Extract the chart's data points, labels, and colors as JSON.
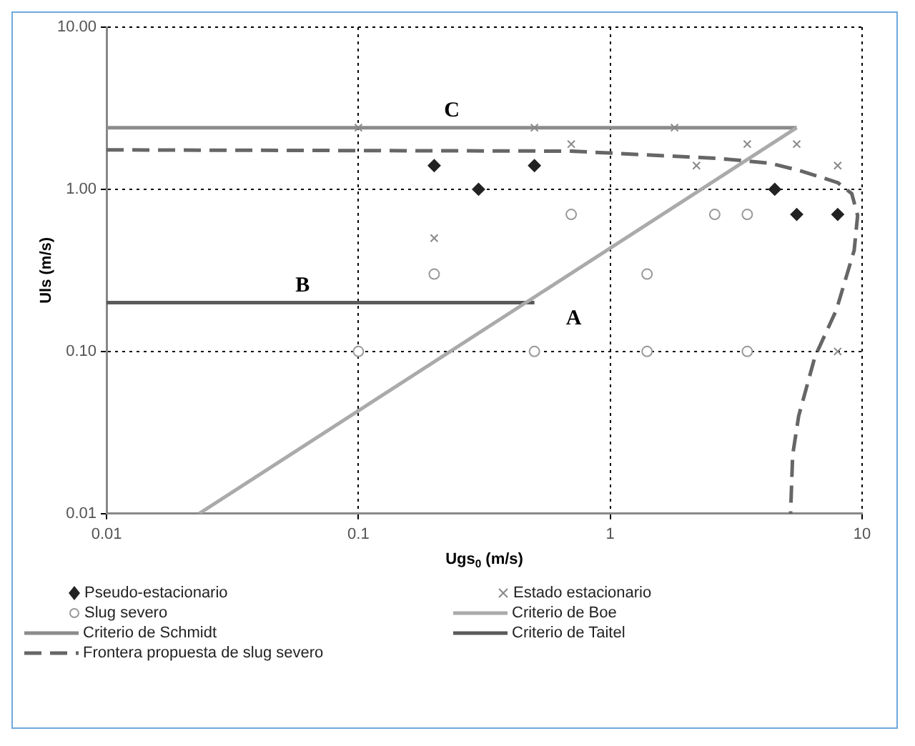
{
  "chart_data": {
    "type": "scatter",
    "xlabel": "Ugs$_{0}$ (m/s)",
    "ylabel": "Uls (m/s)",
    "log": "xy",
    "grid": true,
    "legend": "bottom",
    "xlim": [
      0.01,
      10
    ],
    "xticks": [
      0.01,
      0.1,
      1,
      10
    ],
    "ylim": [
      0.01,
      10
    ],
    "yticks": [
      {
        "value": 0.01,
        "label": "0.01"
      },
      {
        "value": 0.1,
        "label": "0.10"
      },
      {
        "value": 1,
        "label": "1.00"
      },
      {
        "value": 10,
        "label": "10.00"
      }
    ],
    "series": [
      {
        "name": "Pseudo-estacionario",
        "marker": "diamond",
        "color": "#222222",
        "x": [
          0.2,
          0.3,
          0.5,
          4.5,
          5.5,
          8
        ],
        "values": [
          1.4,
          1.0,
          1.4,
          1.0,
          0.7,
          0.7
        ]
      },
      {
        "name": "Estado estacionario",
        "marker": "cross",
        "color": "#888888",
        "x": [
          0.1,
          0.2,
          0.5,
          0.7,
          1.8,
          2.2,
          3.5,
          5.5,
          8,
          8
        ],
        "values": [
          2.4,
          0.5,
          2.4,
          1.9,
          2.4,
          1.4,
          1.9,
          1.9,
          1.4,
          0.1
        ]
      },
      {
        "name": "Slug severo",
        "marker": "circle",
        "color": "#999999",
        "x": [
          0.1,
          0.2,
          0.7,
          1.4,
          2.6,
          3.5,
          0.5,
          1.4,
          3.5
        ],
        "values": [
          0.1,
          0.3,
          0.7,
          0.3,
          0.7,
          0.7,
          0.1,
          0.1,
          0.1
        ]
      },
      {
        "name": "Criterio de Boe",
        "type": "line",
        "marker": "none",
        "line_style": "solid",
        "color": "#aaaaaa",
        "x": [
          0.0233,
          5.5
        ],
        "values": [
          0.01,
          2.4
        ]
      },
      {
        "name": "Criterio de Schmidt",
        "type": "line",
        "marker": "none",
        "line_style": "solid",
        "color": "#8c8c8c",
        "x": [
          0.01,
          5.5
        ],
        "values": [
          2.4,
          2.4
        ]
      },
      {
        "name": "Criterio de Taitel",
        "type": "line",
        "marker": "none",
        "line_style": "solid",
        "color": "#5a5a5a",
        "x": [
          0.01,
          0.5
        ],
        "values": [
          0.2,
          0.2
        ]
      },
      {
        "name": "Frontera propuesta de slug severo",
        "type": "line",
        "marker": "none",
        "line_style": "dashed",
        "color": "#666666",
        "x": [
          0.01,
          0.7,
          2.7,
          4.3,
          5.7,
          8,
          9.1,
          9.6,
          9.3,
          7.9,
          6.5,
          5.6,
          5.3,
          5.2
        ],
        "values": [
          1.75,
          1.72,
          1.55,
          1.45,
          1.3,
          1.1,
          0.94,
          0.69,
          0.42,
          0.18,
          0.093,
          0.04,
          0.023,
          0.01
        ]
      }
    ],
    "annotations": [
      {
        "text": "A",
        "x": 0.5,
        "y": 0.2
      },
      {
        "text": "B",
        "x": 0.06,
        "y": 0.2
      },
      {
        "text": "C",
        "x": 0.235,
        "y": 2.4
      }
    ]
  }
}
